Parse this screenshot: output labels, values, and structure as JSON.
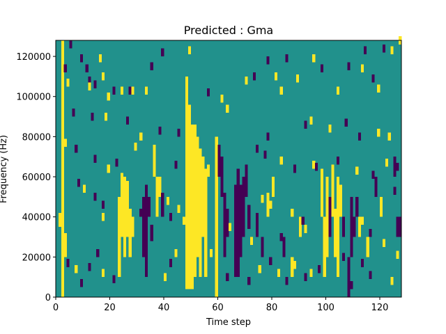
{
  "chart_data": {
    "type": "heatmap",
    "title": "Predicted : Gma",
    "xlabel": "Time step",
    "ylabel": "Frequency (Hz)",
    "xlim": [
      0,
      128
    ],
    "ylim": [
      0,
      128000
    ],
    "xticks": [
      0,
      20,
      40,
      60,
      80,
      100,
      120
    ],
    "xtick_labels": [
      "0",
      "20",
      "40",
      "60",
      "80",
      "100",
      "120"
    ],
    "yticks": [
      0,
      20000,
      40000,
      60000,
      80000,
      100000,
      120000
    ],
    "ytick_labels": [
      "0",
      "20000",
      "40000",
      "60000",
      "80000",
      "100000",
      "120000"
    ],
    "grid": false,
    "colormap": "viridis",
    "value_levels": [
      0,
      1,
      2
    ],
    "colors": {
      "0": "#440154",
      "1": "#21918c",
      "2": "#fde725"
    },
    "background_value": 1,
    "grid_shape": {
      "time_steps": 128,
      "frequency_bins": 128,
      "bin_width_hz": 1000
    },
    "cells": [
      [
        2,
        0,
        128,
        2
      ],
      [
        2,
        41,
        60,
        2
      ],
      [
        1,
        35,
        42,
        2
      ],
      [
        3,
        20,
        32,
        2
      ],
      [
        24,
        30,
        62,
        2
      ],
      [
        25,
        20,
        60,
        2
      ],
      [
        26,
        30,
        58,
        2
      ],
      [
        23,
        10,
        50,
        2
      ],
      [
        27,
        20,
        44,
        2
      ],
      [
        28,
        30,
        40,
        2
      ],
      [
        33,
        10,
        56,
        0
      ],
      [
        32,
        20,
        50,
        0
      ],
      [
        31,
        40,
        44,
        0
      ],
      [
        34,
        40,
        50,
        0
      ],
      [
        35,
        28,
        36,
        0
      ],
      [
        36,
        60,
        76,
        2
      ],
      [
        37,
        40,
        60,
        2
      ],
      [
        38,
        50,
        60,
        2
      ],
      [
        39,
        40,
        52,
        0
      ],
      [
        48,
        4,
        110,
        2
      ],
      [
        49,
        4,
        96,
        2
      ],
      [
        50,
        4,
        86,
        2
      ],
      [
        51,
        10,
        86,
        2
      ],
      [
        52,
        20,
        80,
        2
      ],
      [
        53,
        10,
        74,
        2
      ],
      [
        54,
        30,
        70,
        2
      ],
      [
        55,
        10,
        64,
        2
      ],
      [
        56,
        60,
        66,
        2
      ],
      [
        59,
        0,
        80,
        2
      ],
      [
        60,
        60,
        76,
        0
      ],
      [
        61,
        50,
        70,
        0
      ],
      [
        62,
        20,
        52,
        0
      ],
      [
        63,
        30,
        44,
        0
      ],
      [
        66,
        10,
        56,
        0
      ],
      [
        67,
        10,
        64,
        0
      ],
      [
        68,
        20,
        56,
        0
      ],
      [
        69,
        30,
        60,
        0
      ],
      [
        70,
        50,
        66,
        0
      ],
      [
        71,
        34,
        46,
        0
      ],
      [
        74,
        30,
        42,
        0
      ],
      [
        76,
        20,
        30,
        0
      ],
      [
        78,
        40,
        52,
        2
      ],
      [
        80,
        50,
        60,
        2
      ],
      [
        84,
        20,
        30,
        0
      ],
      [
        87,
        10,
        20,
        2
      ],
      [
        90,
        30,
        40,
        2
      ],
      [
        98,
        40,
        64,
        2
      ],
      [
        99,
        10,
        40,
        2
      ],
      [
        100,
        20,
        60,
        2
      ],
      [
        101,
        30,
        50,
        0
      ],
      [
        102,
        40,
        66,
        2
      ],
      [
        103,
        20,
        44,
        2
      ],
      [
        104,
        10,
        60,
        2
      ],
      [
        105,
        40,
        56,
        2
      ],
      [
        106,
        30,
        40,
        0
      ],
      [
        108,
        0,
        20,
        0
      ],
      [
        109,
        20,
        50,
        0
      ],
      [
        110,
        30,
        40,
        0
      ],
      [
        111,
        40,
        50,
        0
      ],
      [
        112,
        30,
        40,
        2
      ],
      [
        115,
        20,
        30,
        2
      ],
      [
        118,
        50,
        60,
        0
      ],
      [
        120,
        40,
        50,
        2
      ],
      [
        125,
        60,
        70,
        0
      ],
      [
        126,
        30,
        40,
        0
      ],
      [
        127,
        30,
        40,
        0
      ]
    ],
    "ticks": [
      [
        5,
        124,
        0
      ],
      [
        3,
        112,
        0
      ],
      [
        4,
        105,
        2
      ],
      [
        9,
        117,
        0
      ],
      [
        11,
        112,
        0
      ],
      [
        12,
        106,
        0
      ],
      [
        12,
        103,
        2
      ],
      [
        14,
        104,
        0
      ],
      [
        16,
        117,
        2
      ],
      [
        17,
        108,
        2
      ],
      [
        21,
        101,
        0
      ],
      [
        19,
        98,
        2
      ],
      [
        24,
        101,
        2
      ],
      [
        27,
        101,
        0
      ],
      [
        28,
        101,
        2
      ],
      [
        33,
        101,
        2
      ],
      [
        39,
        120,
        0
      ],
      [
        35,
        113,
        0
      ],
      [
        49,
        121,
        2
      ],
      [
        56,
        100,
        0
      ],
      [
        61,
        97,
        2
      ],
      [
        63,
        92,
        2
      ],
      [
        70,
        106,
        2
      ],
      [
        73,
        108,
        0
      ],
      [
        78,
        116,
        0
      ],
      [
        81,
        108,
        2
      ],
      [
        83,
        101,
        2
      ],
      [
        85,
        117,
        0
      ],
      [
        89,
        107,
        2
      ],
      [
        95,
        117,
        2
      ],
      [
        98,
        112,
        0
      ],
      [
        104,
        101,
        2
      ],
      [
        108,
        113,
        0
      ],
      [
        113,
        112,
        2
      ],
      [
        114,
        121,
        0
      ],
      [
        117,
        107,
        0
      ],
      [
        119,
        102,
        2
      ],
      [
        121,
        122,
        0
      ],
      [
        124,
        121,
        2
      ],
      [
        127,
        126,
        2
      ],
      [
        6,
        90,
        0
      ],
      [
        13,
        88,
        0
      ],
      [
        18,
        88,
        2
      ],
      [
        26,
        86,
        0
      ],
      [
        31,
        78,
        2
      ],
      [
        38,
        81,
        0
      ],
      [
        45,
        80,
        0
      ],
      [
        78,
        78,
        0
      ],
      [
        92,
        84,
        0
      ],
      [
        94,
        86,
        2
      ],
      [
        101,
        82,
        2
      ],
      [
        107,
        85,
        0
      ],
      [
        112,
        78,
        0
      ],
      [
        119,
        80,
        2
      ],
      [
        123,
        78,
        2
      ],
      [
        3,
        75,
        2
      ],
      [
        7,
        72,
        0
      ],
      [
        14,
        67,
        0
      ],
      [
        19,
        62,
        2
      ],
      [
        22,
        65,
        0
      ],
      [
        29,
        73,
        2
      ],
      [
        44,
        64,
        0
      ],
      [
        74,
        72,
        0
      ],
      [
        77,
        69,
        0
      ],
      [
        83,
        66,
        2
      ],
      [
        88,
        62,
        0
      ],
      [
        95,
        64,
        2
      ],
      [
        96,
        63,
        0
      ],
      [
        104,
        66,
        0
      ],
      [
        111,
        61,
        2
      ],
      [
        117,
        59,
        0
      ],
      [
        122,
        65,
        2
      ],
      [
        126,
        63,
        0
      ],
      [
        8,
        55,
        0
      ],
      [
        10,
        52,
        2
      ],
      [
        14,
        48,
        0
      ],
      [
        17,
        44,
        0
      ],
      [
        17,
        38,
        2
      ],
      [
        41,
        46,
        2
      ],
      [
        42,
        38,
        0
      ],
      [
        45,
        42,
        2
      ],
      [
        47,
        36,
        2
      ],
      [
        64,
        33,
        2
      ],
      [
        72,
        26,
        2
      ],
      [
        76,
        47,
        2
      ],
      [
        79,
        44,
        2
      ],
      [
        83,
        28,
        0
      ],
      [
        87,
        40,
        2
      ],
      [
        91,
        36,
        0
      ],
      [
        92,
        32,
        2
      ],
      [
        113,
        36,
        2
      ],
      [
        116,
        30,
        0
      ],
      [
        121,
        25,
        2
      ],
      [
        125,
        51,
        0
      ],
      [
        4,
        15,
        0
      ],
      [
        7,
        12,
        2
      ],
      [
        9,
        5,
        0
      ],
      [
        12,
        13,
        0
      ],
      [
        15,
        20,
        0
      ],
      [
        17,
        10,
        2
      ],
      [
        21,
        7,
        0
      ],
      [
        40,
        8,
        2
      ],
      [
        42,
        15,
        0
      ],
      [
        44,
        20,
        2
      ],
      [
        57,
        20,
        2
      ],
      [
        63,
        8,
        0
      ],
      [
        71,
        6,
        0
      ],
      [
        75,
        12,
        2
      ],
      [
        79,
        16,
        0
      ],
      [
        82,
        10,
        2
      ],
      [
        85,
        6,
        0
      ],
      [
        88,
        14,
        2
      ],
      [
        92,
        8,
        0
      ],
      [
        94,
        10,
        2
      ],
      [
        97,
        12,
        0
      ],
      [
        106,
        18,
        0
      ],
      [
        109,
        4,
        0
      ],
      [
        113,
        15,
        0
      ],
      [
        116,
        9,
        0
      ],
      [
        124,
        6,
        2
      ],
      [
        126,
        19,
        2
      ]
    ]
  }
}
